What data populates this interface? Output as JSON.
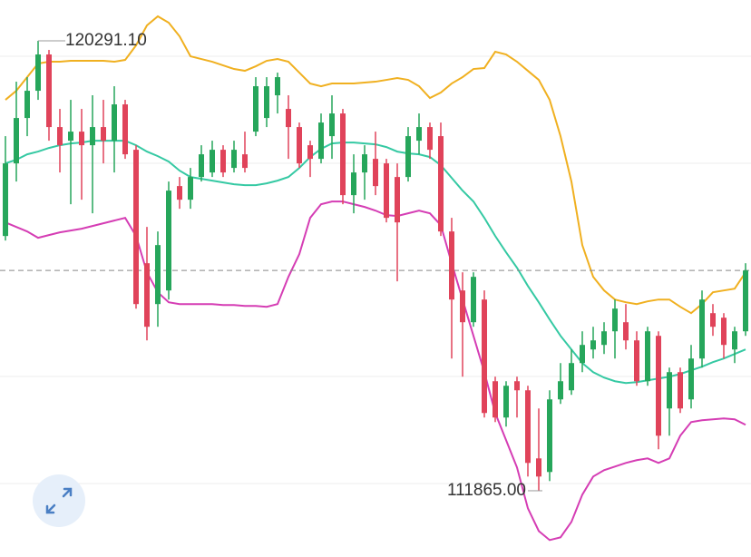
{
  "chart_data": {
    "type": "candlestick",
    "ylim": [
      110624,
      121056
    ],
    "up_color": "#26a65b",
    "down_color": "#e0435a",
    "open": [
      116636,
      117996,
      118846,
      119356,
      120036,
      118676,
      118421,
      118591,
      118336,
      118676,
      118421,
      119101,
      118251,
      116126,
      115361,
      115616,
      117571,
      117316,
      117741,
      117826,
      118251,
      117911,
      118166,
      118591,
      118846,
      119271,
      119016,
      118676,
      118336,
      118081,
      118506,
      118931,
      117401,
      117826,
      118081,
      117996,
      117741,
      117741,
      118421,
      118676,
      118506,
      116721,
      115616,
      115021,
      115446,
      113916,
      113236,
      113916,
      113746,
      112471,
      112216,
      113576,
      113746,
      114256,
      114511,
      114596,
      114851,
      115021,
      114681,
      113916,
      114766,
      113406,
      114086,
      113576,
      114341,
      115191,
      115106,
      114511,
      114851
    ],
    "high": [
      118506,
      119526,
      119611,
      120291.1,
      120121,
      119016,
      119186,
      119016,
      119271,
      119186,
      119441,
      119186,
      118336,
      116806,
      116721,
      117656,
      117741,
      117911,
      118336,
      118421,
      118336,
      118421,
      118591,
      119611,
      119611,
      119696,
      119271,
      118761,
      118421,
      118931,
      119271,
      119016,
      118166,
      118336,
      118591,
      118081,
      117996,
      118676,
      118931,
      118761,
      118761,
      116976,
      115956,
      115956,
      115616,
      114001,
      113916,
      114001,
      113831,
      113406,
      113746,
      114256,
      114511,
      114851,
      114936,
      115021,
      115446,
      115361,
      114851,
      114936,
      114851,
      114171,
      114171,
      114596,
      115616,
      115361,
      115191,
      114936,
      116126
    ],
    "low": [
      116551,
      117656,
      118506,
      119186,
      118421,
      117826,
      117231,
      117316,
      117061,
      117996,
      117826,
      118081,
      115276,
      114681,
      114936,
      115446,
      117146,
      117146,
      117656,
      117741,
      117741,
      117826,
      117826,
      118506,
      118676,
      118931,
      118081,
      117911,
      117741,
      117996,
      118081,
      117231,
      117061,
      117316,
      117401,
      116891,
      115786,
      117656,
      118166,
      118081,
      116636,
      114341,
      114001,
      114936,
      113236,
      113151,
      113066,
      113236,
      112131,
      111865,
      112046,
      113491,
      113661,
      114086,
      114341,
      114426,
      114341,
      114511,
      113831,
      113831,
      112641,
      112896,
      113321,
      113406,
      114171,
      114766,
      114341,
      114256,
      114766
    ],
    "close": [
      117996,
      118846,
      119356,
      120036,
      118676,
      118336,
      118591,
      118336,
      118676,
      118421,
      119101,
      118166,
      115361,
      114936,
      116466,
      117486,
      117316,
      117741,
      118166,
      118251,
      117826,
      118251,
      117911,
      119441,
      119441,
      119611,
      118676,
      117996,
      118081,
      118761,
      118931,
      117401,
      117826,
      118166,
      117571,
      116976,
      116891,
      118506,
      118676,
      118251,
      116721,
      115446,
      115021,
      115871,
      113321,
      113236,
      113831,
      113746,
      112386,
      112131,
      113576,
      113916,
      114256,
      114596,
      114681,
      114851,
      115276,
      114681,
      113916,
      114851,
      112896,
      114086,
      113406,
      114341,
      115446,
      114936,
      114596,
      114851,
      115990
    ],
    "overlays": [
      {
        "color": "#f0b020",
        "values": [
          119186,
          119356,
          119611,
          119866,
          119900,
          119900,
          119917,
          119917,
          119917,
          119917,
          119900,
          119934,
          120206,
          120580,
          120750,
          120631,
          120376,
          120002,
          119951,
          119900,
          119832,
          119764,
          119730,
          119815,
          119917,
          119951,
          119900,
          119696,
          119492,
          119441,
          119492,
          119492,
          119492,
          119509,
          119526,
          119560,
          119594,
          119560,
          119441,
          119220,
          119322,
          119492,
          119611,
          119764,
          119781,
          120087,
          120036,
          119900,
          119730,
          119560,
          119186,
          118506,
          117656,
          116466,
          115871,
          115616,
          115446,
          115395,
          115361,
          115412,
          115446,
          115446,
          115310,
          115191,
          115361,
          115582,
          115616,
          115650,
          115956
        ]
      },
      {
        "color": "#35c9a3",
        "values": [
          117996,
          118064,
          118166,
          118217,
          118285,
          118336,
          118370,
          118387,
          118421,
          118421,
          118421,
          118421,
          118336,
          118217,
          118132,
          118030,
          117860,
          117741,
          117707,
          117673,
          117639,
          117605,
          117588,
          117588,
          117622,
          117673,
          117741,
          117911,
          118115,
          118268,
          118370,
          118387,
          118387,
          118370,
          118353,
          118302,
          118217,
          118183,
          118166,
          118115,
          117962,
          117724,
          117486,
          117282,
          116976,
          116636,
          116330,
          116041,
          115701,
          115395,
          115072,
          114766,
          114511,
          114256,
          114086,
          113984,
          113916,
          113882,
          113899,
          113933,
          113967,
          114001,
          114052,
          114120,
          114188,
          114273,
          114341,
          114426,
          114511
        ]
      },
      {
        "color": "#d53db4",
        "values": [
          116891,
          116806,
          116721,
          116602,
          116653,
          116704,
          116738,
          116772,
          116823,
          116874,
          116925,
          116976,
          116636,
          115956,
          115582,
          115395,
          115361,
          115361,
          115361,
          115361,
          115344,
          115344,
          115327,
          115327,
          115310,
          115361,
          115871,
          116296,
          116976,
          117231,
          117282,
          117282,
          117231,
          117180,
          117112,
          117027,
          117010,
          117061,
          117112,
          117061,
          116840,
          116126,
          115446,
          114766,
          114086,
          113321,
          112811,
          112301,
          111536,
          111111,
          110941,
          110992,
          111281,
          111791,
          112131,
          112250,
          112318,
          112386,
          112437,
          112471,
          112386,
          112471,
          112896,
          113151,
          113185,
          113202,
          113219,
          113202,
          113100
        ]
      }
    ],
    "annotations": [
      {
        "value": 120291.1,
        "label": "120291.10"
      },
      {
        "value": 111865,
        "label": "111865.00"
      }
    ]
  }
}
